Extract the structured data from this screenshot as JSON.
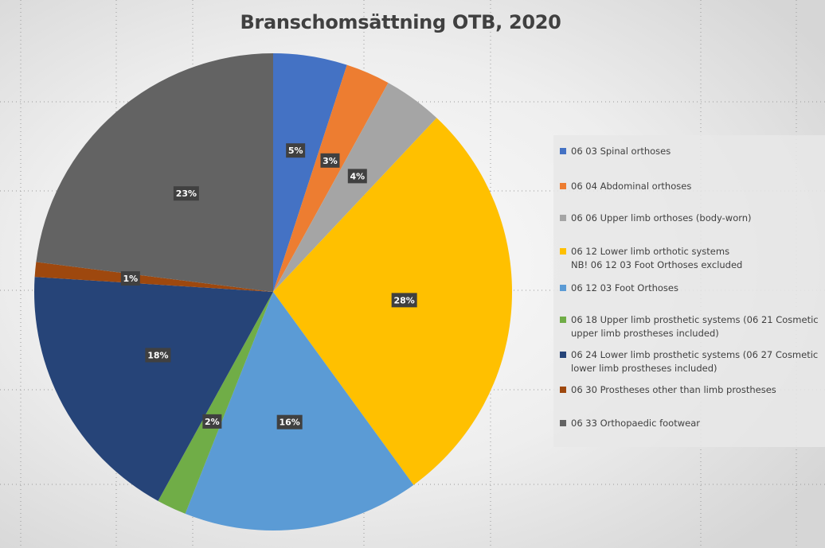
{
  "title": "Branschomsättning OTB, 2020",
  "chart_data": {
    "type": "pie",
    "title": "Branschomsättning OTB, 2020",
    "legend_position": "right",
    "start_angle_deg": 0,
    "direction": "clockwise",
    "slices": [
      {
        "label": "06 03 Spinal orthoses",
        "value": 5,
        "data_label": "5%",
        "color": "#4472C4"
      },
      {
        "label": "06 04 Abdominal orthoses",
        "value": 3,
        "data_label": "3%",
        "color": "#ED7D31"
      },
      {
        "label": "06 06 Upper limb orthoses (body-worn)",
        "value": 4,
        "data_label": "4%",
        "color": "#A5A5A5"
      },
      {
        "label": "06 12 Lower limb orthotic systems\nNB! 06 12 03 Foot Orthoses excluded",
        "value": 28,
        "data_label": "28%",
        "color": "#FFC000"
      },
      {
        "label": "06 12 03 Foot Orthoses",
        "value": 16,
        "data_label": "16%",
        "color": "#5B9BD5"
      },
      {
        "label": "06 18 Upper limb prosthetic systems (06 21 Cosmetic\nupper limb prostheses included)",
        "value": 2,
        "data_label": "2%",
        "color": "#70AD47"
      },
      {
        "label": "06 24 Lower limb prosthetic systems (06 27 Cosmetic\nlower limb prostheses included)",
        "value": 18,
        "data_label": "18%",
        "color": "#264478"
      },
      {
        "label": "06 30 Prostheses other than limb prostheses",
        "value": 1,
        "data_label": "1%",
        "color": "#9E480E"
      },
      {
        "label": "06 33 Orthopaedic footwear",
        "value": 23,
        "data_label": "23%",
        "color": "#636363"
      }
    ]
  }
}
